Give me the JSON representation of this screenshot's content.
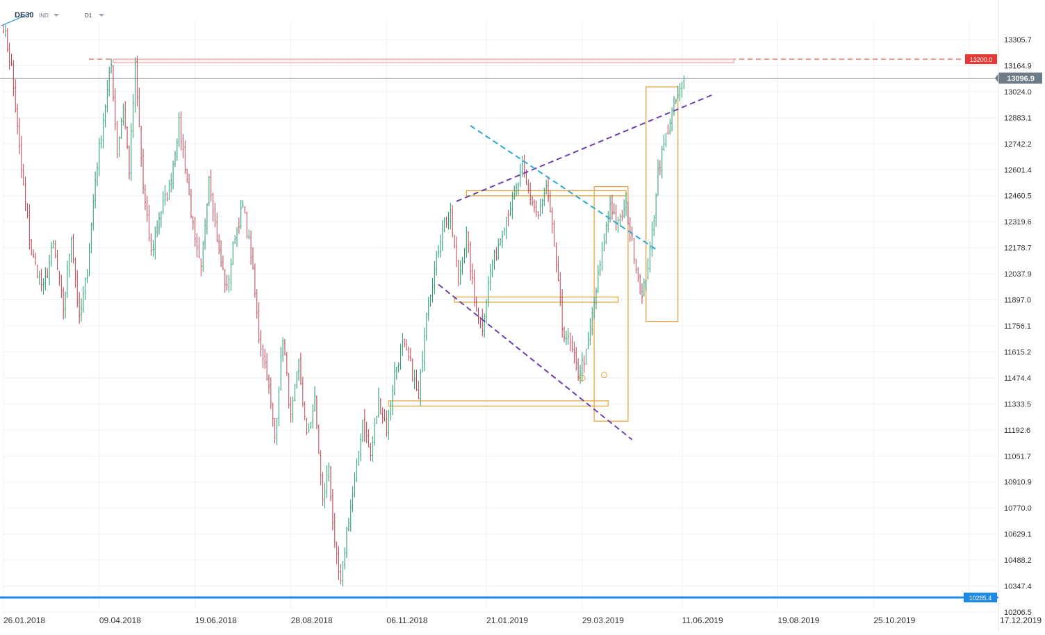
{
  "header": {
    "symbol": "DE30",
    "market": "IND",
    "timeframe": "D1"
  },
  "colors": {
    "background": "#ffffff",
    "grid": "#eef0f3",
    "bull_candle": "#1f9a6a",
    "bear_candle": "#c23b4c",
    "resistance_line": "#e53935",
    "current_price_line": "#888888",
    "support_line": "#1e88e5",
    "channel_trendline": "#6a3fb3",
    "cyan_trendline": "#29a9d6",
    "box_outline": "#e6a033",
    "axis_text": "#333333"
  },
  "chart_data": {
    "type": "candlestick",
    "instrument": "DE30",
    "timeframe": "D1",
    "x_ticks": [
      "26.01.2018",
      "09.04.2018",
      "19.06.2018",
      "28.08.2018",
      "06.11.2018",
      "21.01.2019",
      "29.03.2019",
      "11.06.2019",
      "19.08.2019",
      "25.10.2019",
      "17.12.2019"
    ],
    "y_ticks": [
      "13305.7",
      "13164.9",
      "13024.0",
      "12883.1",
      "12742.2",
      "12601.4",
      "12460.5",
      "12319.6",
      "12178.7",
      "12037.9",
      "11897.0",
      "11756.1",
      "11615.2",
      "11474.4",
      "11333.5",
      "11192.6",
      "11051.7",
      "10910.9",
      "10770.0",
      "10629.1",
      "10488.2",
      "10347.4",
      "10206.5"
    ],
    "y_range": [
      10206.5,
      13400
    ],
    "price_path": [
      [
        0,
        13380
      ],
      [
        4,
        13150
      ],
      [
        9,
        12600
      ],
      [
        14,
        12150
      ],
      [
        20,
        11950
      ],
      [
        25,
        12200
      ],
      [
        30,
        11850
      ],
      [
        34,
        12250
      ],
      [
        38,
        11780
      ],
      [
        42,
        12050
      ],
      [
        46,
        12550
      ],
      [
        50,
        12880
      ],
      [
        54,
        13170
      ],
      [
        57,
        12700
      ],
      [
        60,
        12950
      ],
      [
        63,
        12600
      ],
      [
        66,
        13150
      ],
      [
        70,
        12500
      ],
      [
        74,
        12150
      ],
      [
        78,
        12350
      ],
      [
        83,
        12500
      ],
      [
        88,
        12850
      ],
      [
        92,
        12550
      ],
      [
        96,
        12200
      ],
      [
        99,
        12050
      ],
      [
        103,
        12580
      ],
      [
        108,
        12150
      ],
      [
        112,
        11950
      ],
      [
        116,
        12250
      ],
      [
        120,
        12400
      ],
      [
        124,
        12150
      ],
      [
        128,
        11700
      ],
      [
        132,
        11500
      ],
      [
        136,
        11150
      ],
      [
        140,
        11700
      ],
      [
        144,
        11250
      ],
      [
        148,
        11550
      ],
      [
        152,
        11150
      ],
      [
        156,
        11350
      ],
      [
        160,
        10800
      ],
      [
        163,
        11000
      ],
      [
        166,
        10550
      ],
      [
        169,
        10350
      ],
      [
        172,
        10650
      ],
      [
        176,
        10900
      ],
      [
        180,
        11250
      ],
      [
        184,
        11050
      ],
      [
        188,
        11350
      ],
      [
        192,
        11200
      ],
      [
        196,
        11500
      ],
      [
        200,
        11650
      ],
      [
        204,
        11550
      ],
      [
        208,
        11350
      ],
      [
        212,
        11850
      ],
      [
        216,
        12050
      ],
      [
        220,
        12300
      ],
      [
        224,
        12350
      ],
      [
        228,
        12000
      ],
      [
        232,
        12250
      ],
      [
        236,
        11900
      ],
      [
        240,
        11750
      ],
      [
        244,
        12050
      ],
      [
        248,
        12200
      ],
      [
        252,
        12350
      ],
      [
        256,
        12450
      ],
      [
        260,
        12600
      ],
      [
        264,
        12450
      ],
      [
        268,
        12350
      ],
      [
        272,
        12500
      ],
      [
        276,
        12200
      ],
      [
        280,
        11750
      ],
      [
        284,
        11650
      ],
      [
        288,
        11500
      ],
      [
        292,
        11600
      ],
      [
        296,
        11880
      ],
      [
        300,
        12150
      ],
      [
        304,
        12420
      ],
      [
        308,
        12300
      ],
      [
        312,
        12400
      ],
      [
        316,
        12150
      ],
      [
        320,
        11900
      ],
      [
        324,
        12150
      ],
      [
        328,
        12600
      ],
      [
        332,
        12780
      ],
      [
        336,
        12950
      ],
      [
        339,
        13020
      ],
      [
        341,
        13096.9
      ]
    ],
    "x_tick_bars": [
      0,
      48,
      96,
      144,
      192,
      242,
      290,
      340,
      388,
      436,
      484
    ],
    "total_bars": 495,
    "horizontal_levels": [
      {
        "label": "13200.0",
        "price": 13200.0,
        "style": "dashed",
        "color": "#e53935"
      },
      {
        "label": "13096.9",
        "price": 13096.9,
        "style": "solid",
        "color": "#888888"
      },
      {
        "label": "10285.4",
        "price": 10285.4,
        "style": "solid",
        "color": "#1e88e5"
      }
    ],
    "trendlines": [
      {
        "style": "dashed",
        "color": "#6a3fb3",
        "from": [
          227,
          12430
        ],
        "to": [
          356,
          13010
        ]
      },
      {
        "style": "dashed",
        "color": "#6a3fb3",
        "from": [
          218,
          11980
        ],
        "to": [
          315,
          11140
        ]
      },
      {
        "style": "dashed",
        "color": "#29a9d6",
        "from": [
          234,
          12840
        ],
        "to": [
          327,
          12170
        ]
      }
    ],
    "zones": [
      {
        "type": "horizontal-band",
        "from_bar": 232,
        "to_bar": 312,
        "low": 12460,
        "high": 12488
      },
      {
        "type": "horizontal-band",
        "from_bar": 226,
        "to_bar": 308,
        "low": 11884,
        "high": 11912
      },
      {
        "type": "horizontal-band",
        "from_bar": 193,
        "to_bar": 303,
        "low": 11322,
        "high": 11350
      },
      {
        "type": "box",
        "from_bar": 296,
        "to_bar": 313,
        "low": 11240,
        "high": 12510
      },
      {
        "type": "box",
        "from_bar": 322,
        "to_bar": 338,
        "low": 11780,
        "high": 13050
      },
      {
        "type": "horizontal-band",
        "from_bar": 55,
        "to_bar": 366,
        "low": 13180,
        "high": 13200
      }
    ],
    "markers": [
      {
        "bar": 290,
        "price": 11474,
        "shape": "circle"
      },
      {
        "bar": 301,
        "price": 11490,
        "shape": "circle"
      }
    ]
  }
}
